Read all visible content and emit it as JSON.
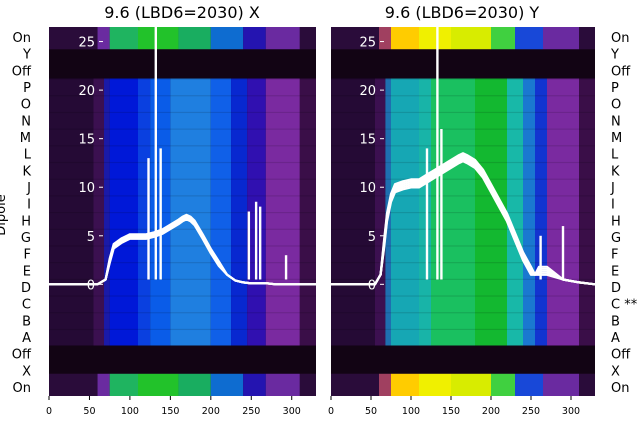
{
  "chart_data": [
    {
      "type": "heatmap",
      "title": "9.6 (LBD6=2030) X",
      "xlabel": "",
      "ylabel": "Dipole",
      "xlim": [
        0,
        330
      ],
      "x_ticks": [
        0,
        50,
        100,
        150,
        200,
        250,
        300
      ],
      "y_ticks": [
        0,
        5,
        10,
        15,
        20,
        25
      ],
      "ylim": [
        -11.5,
        26.5
      ],
      "row_labels": [
        "On",
        "Y",
        "Off",
        "P",
        "O",
        "N",
        "M",
        "L",
        "K",
        "J",
        "I",
        "H",
        "G",
        "F",
        "E",
        "D",
        "C",
        "B",
        "A",
        "Off",
        "X",
        "On"
      ],
      "trace_x": [
        0,
        40,
        60,
        70,
        75,
        80,
        90,
        100,
        110,
        120,
        130,
        140,
        150,
        160,
        165,
        170,
        175,
        180,
        190,
        200,
        210,
        220,
        230,
        240,
        250,
        260,
        270,
        280,
        300,
        320,
        330
      ],
      "trace_y": [
        0,
        0,
        0,
        0.5,
        2.5,
        4,
        4.6,
        5,
        5,
        5,
        5.2,
        5.5,
        6,
        6.5,
        6.8,
        7,
        6.8,
        6.4,
        5,
        3.5,
        2.2,
        1,
        0.4,
        0.2,
        0.1,
        0.1,
        0.1,
        0,
        0,
        0,
        0
      ],
      "spikes": [
        {
          "x": 123,
          "y": 13
        },
        {
          "x": 132,
          "y": 27
        },
        {
          "x": 138,
          "y": 14
        },
        {
          "x": 247,
          "y": 7.5
        },
        {
          "x": 256,
          "y": 8.5
        },
        {
          "x": 261,
          "y": 8
        },
        {
          "x": 293,
          "y": 3
        }
      ],
      "colors": {
        "line": "#ffffff"
      }
    },
    {
      "type": "heatmap",
      "title": "9.6 (LBD6=2030) Y",
      "xlabel": "",
      "ylabel": "",
      "xlim": [
        0,
        330
      ],
      "x_ticks": [
        0,
        50,
        100,
        150,
        200,
        250,
        300
      ],
      "y_ticks": [
        0,
        5,
        10,
        15,
        20,
        25
      ],
      "ylim": [
        -11.5,
        26.5
      ],
      "row_labels": [
        "On",
        "Y",
        "Off",
        "P",
        "O",
        "N",
        "M",
        "L",
        "K",
        "J",
        "I",
        "H",
        "G",
        "F",
        "E",
        "D",
        "C **",
        "B",
        "A",
        "Off",
        "X",
        "On"
      ],
      "trace_x": [
        0,
        40,
        55,
        62,
        66,
        70,
        75,
        80,
        90,
        100,
        110,
        120,
        130,
        140,
        150,
        160,
        165,
        170,
        180,
        190,
        200,
        210,
        220,
        230,
        240,
        250,
        255,
        260,
        270,
        290,
        310,
        330
      ],
      "trace_y": [
        0,
        0,
        0,
        1,
        4,
        7,
        9,
        10,
        10.3,
        10.5,
        10.5,
        11,
        11.5,
        12,
        12.5,
        13,
        13.2,
        13,
        12.5,
        11.5,
        10,
        8.5,
        7,
        5,
        3,
        1.5,
        1,
        1.5,
        1.5,
        0.5,
        0.2,
        0
      ],
      "spikes": [
        {
          "x": 120,
          "y": 14
        },
        {
          "x": 133,
          "y": 27
        },
        {
          "x": 138,
          "y": 16
        },
        {
          "x": 262,
          "y": 5
        },
        {
          "x": 290,
          "y": 6
        }
      ],
      "colors": {
        "line": "#ffffff"
      }
    }
  ]
}
